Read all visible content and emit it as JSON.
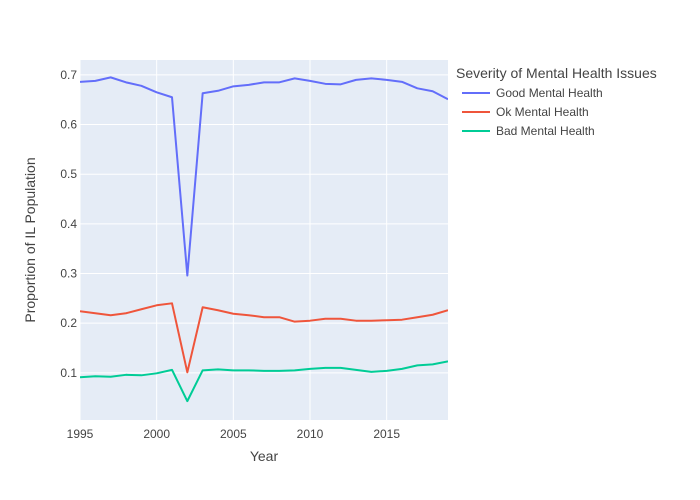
{
  "chart_data": {
    "type": "line",
    "title": "",
    "xlabel": "Year",
    "ylabel": "Proportion of IL Population",
    "xlim": [
      1995,
      2019
    ],
    "ylim": [
      0.005,
      0.73
    ],
    "x_ticks": [
      1995,
      2000,
      2005,
      2010,
      2015
    ],
    "y_ticks": [
      0.1,
      0.2,
      0.3,
      0.4,
      0.5,
      0.6,
      0.7
    ],
    "grid": true,
    "background_color": "#e5ecf6",
    "legend": {
      "title": "Severity of Mental Health Issues",
      "placement": "right"
    },
    "x": [
      1995,
      1996,
      1997,
      1998,
      1999,
      2000,
      2001,
      2002,
      2003,
      2004,
      2005,
      2006,
      2007,
      2008,
      2009,
      2010,
      2011,
      2012,
      2013,
      2014,
      2015,
      2016,
      2017,
      2018,
      2019
    ],
    "series": [
      {
        "name": "Good Mental Health",
        "color": "#636efa",
        "values": [
          0.686,
          0.688,
          0.695,
          0.685,
          0.678,
          0.665,
          0.655,
          0.296,
          0.663,
          0.668,
          0.677,
          0.68,
          0.685,
          0.685,
          0.693,
          0.688,
          0.682,
          0.681,
          0.69,
          0.693,
          0.69,
          0.686,
          0.673,
          0.667,
          0.651
        ]
      },
      {
        "name": "Ok Mental Health",
        "color": "#ef553b",
        "values": [
          0.224,
          0.22,
          0.216,
          0.22,
          0.228,
          0.236,
          0.24,
          0.101,
          0.232,
          0.226,
          0.219,
          0.216,
          0.212,
          0.212,
          0.203,
          0.205,
          0.209,
          0.209,
          0.205,
          0.205,
          0.206,
          0.207,
          0.212,
          0.217,
          0.226
        ]
      },
      {
        "name": "Bad Mental Health",
        "color": "#00cc96",
        "values": [
          0.091,
          0.093,
          0.092,
          0.096,
          0.095,
          0.099,
          0.106,
          0.043,
          0.105,
          0.107,
          0.105,
          0.105,
          0.104,
          0.104,
          0.105,
          0.108,
          0.11,
          0.11,
          0.106,
          0.102,
          0.104,
          0.108,
          0.115,
          0.117,
          0.123
        ]
      }
    ]
  }
}
